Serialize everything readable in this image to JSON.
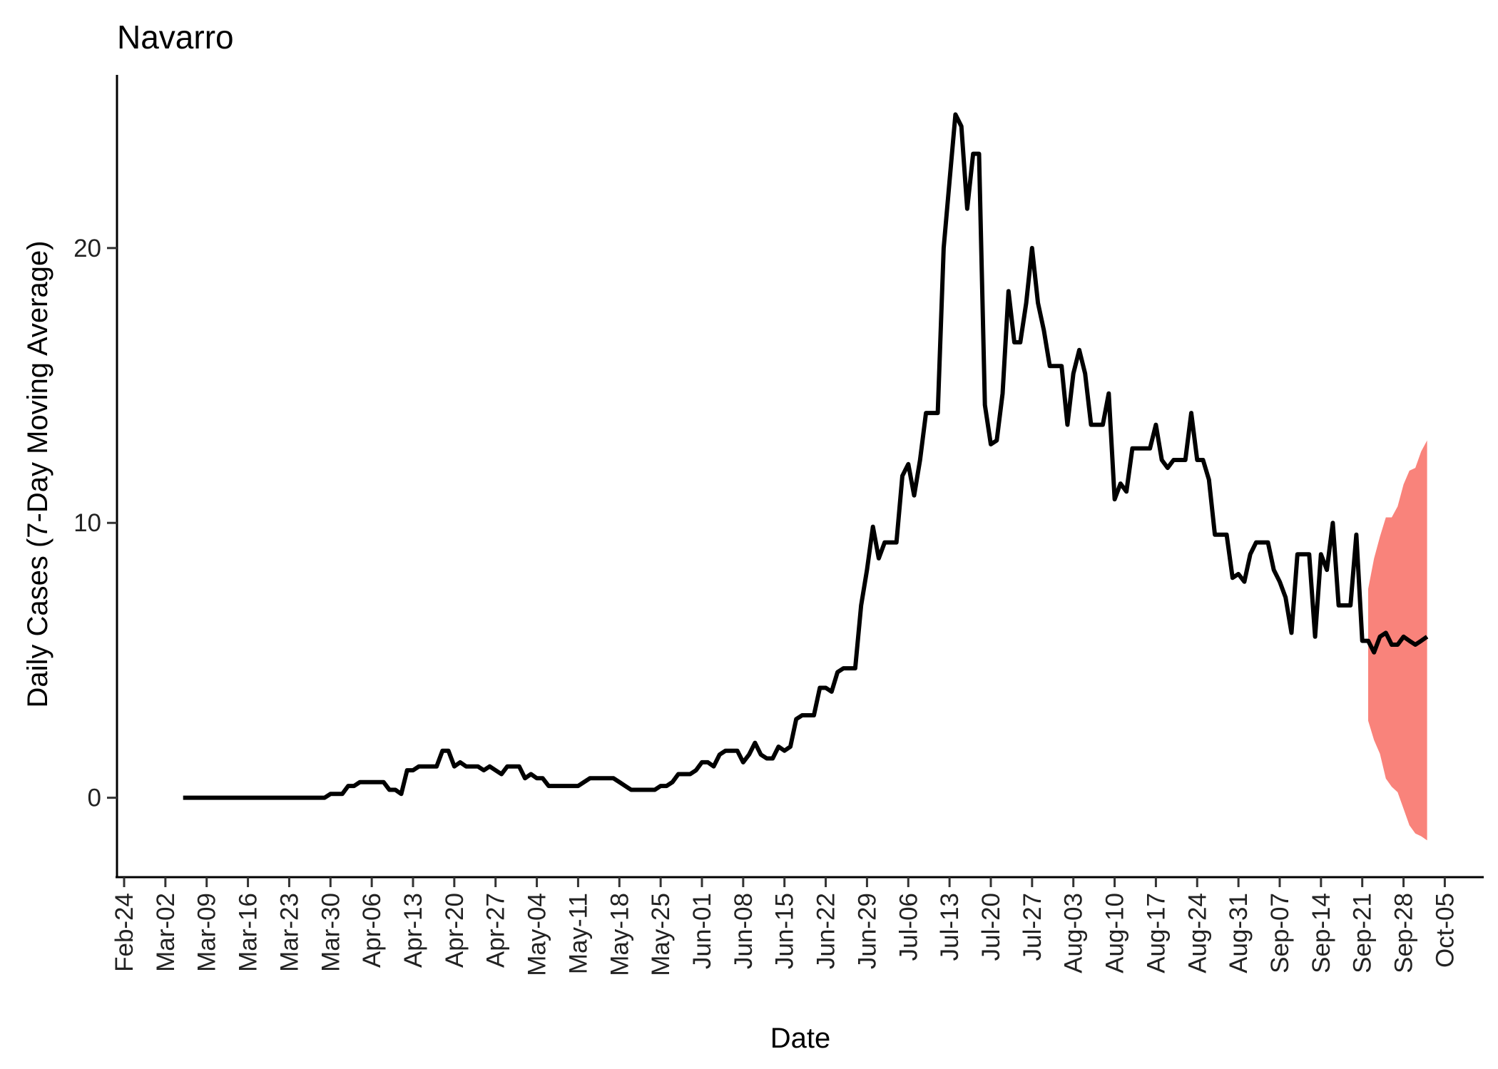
{
  "chart_data": {
    "type": "line",
    "title": "Navarro",
    "xlabel": "Date",
    "ylabel": "Daily Cases (7-Day Moving Average)",
    "x_tick_labels": [
      "Feb-24",
      "Mar-02",
      "Mar-09",
      "Mar-16",
      "Mar-23",
      "Mar-30",
      "Apr-06",
      "Apr-13",
      "Apr-20",
      "Apr-27",
      "May-04",
      "May-11",
      "May-18",
      "May-25",
      "Jun-01",
      "Jun-08",
      "Jun-15",
      "Jun-22",
      "Jun-29",
      "Jul-06",
      "Jul-13",
      "Jul-20",
      "Jul-27",
      "Aug-03",
      "Aug-10",
      "Aug-17",
      "Aug-24",
      "Aug-31",
      "Sep-07",
      "Sep-14",
      "Sep-21",
      "Sep-28",
      "Oct-05"
    ],
    "y_ticks": [
      0,
      10,
      20
    ],
    "ylim": [
      -2.5,
      26.3
    ],
    "xlim": [
      "2020-02-24",
      "2020-10-11"
    ],
    "grid": false,
    "series": [
      {
        "type": "line",
        "color": "#000000",
        "points": [
          [
            "2020-03-05",
            0
          ],
          [
            "2020-03-10",
            0
          ],
          [
            "2020-03-15",
            0
          ],
          [
            "2020-03-20",
            0
          ],
          [
            "2020-03-25",
            0
          ],
          [
            "2020-03-29",
            0
          ],
          [
            "2020-03-30",
            0.14
          ],
          [
            "2020-03-31",
            0.14
          ],
          [
            "2020-04-01",
            0.14
          ],
          [
            "2020-04-02",
            0.43
          ],
          [
            "2020-04-03",
            0.43
          ],
          [
            "2020-04-04",
            0.57
          ],
          [
            "2020-04-05",
            0.57
          ],
          [
            "2020-04-06",
            0.57
          ],
          [
            "2020-04-07",
            0.57
          ],
          [
            "2020-04-08",
            0.57
          ],
          [
            "2020-04-09",
            0.29
          ],
          [
            "2020-04-10",
            0.29
          ],
          [
            "2020-04-11",
            0.14
          ],
          [
            "2020-04-12",
            1.0
          ],
          [
            "2020-04-13",
            1.0
          ],
          [
            "2020-04-14",
            1.14
          ],
          [
            "2020-04-15",
            1.14
          ],
          [
            "2020-04-16",
            1.14
          ],
          [
            "2020-04-17",
            1.14
          ],
          [
            "2020-04-18",
            1.71
          ],
          [
            "2020-04-19",
            1.71
          ],
          [
            "2020-04-20",
            1.14
          ],
          [
            "2020-04-21",
            1.29
          ],
          [
            "2020-04-22",
            1.14
          ],
          [
            "2020-04-23",
            1.14
          ],
          [
            "2020-04-24",
            1.14
          ],
          [
            "2020-04-25",
            1.0
          ],
          [
            "2020-04-26",
            1.14
          ],
          [
            "2020-04-27",
            1.0
          ],
          [
            "2020-04-28",
            0.86
          ],
          [
            "2020-04-29",
            1.14
          ],
          [
            "2020-04-30",
            1.14
          ],
          [
            "2020-05-01",
            1.14
          ],
          [
            "2020-05-02",
            0.71
          ],
          [
            "2020-05-03",
            0.86
          ],
          [
            "2020-05-04",
            0.71
          ],
          [
            "2020-05-05",
            0.71
          ],
          [
            "2020-05-06",
            0.43
          ],
          [
            "2020-05-07",
            0.43
          ],
          [
            "2020-05-08",
            0.43
          ],
          [
            "2020-05-09",
            0.43
          ],
          [
            "2020-05-10",
            0.43
          ],
          [
            "2020-05-11",
            0.43
          ],
          [
            "2020-05-12",
            0.57
          ],
          [
            "2020-05-13",
            0.71
          ],
          [
            "2020-05-14",
            0.71
          ],
          [
            "2020-05-15",
            0.71
          ],
          [
            "2020-05-16",
            0.71
          ],
          [
            "2020-05-17",
            0.71
          ],
          [
            "2020-05-18",
            0.57
          ],
          [
            "2020-05-19",
            0.43
          ],
          [
            "2020-05-20",
            0.29
          ],
          [
            "2020-05-21",
            0.29
          ],
          [
            "2020-05-22",
            0.29
          ],
          [
            "2020-05-23",
            0.29
          ],
          [
            "2020-05-24",
            0.29
          ],
          [
            "2020-05-25",
            0.43
          ],
          [
            "2020-05-26",
            0.43
          ],
          [
            "2020-05-27",
            0.57
          ],
          [
            "2020-05-28",
            0.86
          ],
          [
            "2020-05-29",
            0.86
          ],
          [
            "2020-05-30",
            0.86
          ],
          [
            "2020-05-31",
            1.0
          ],
          [
            "2020-06-01",
            1.29
          ],
          [
            "2020-06-02",
            1.29
          ],
          [
            "2020-06-03",
            1.14
          ],
          [
            "2020-06-04",
            1.57
          ],
          [
            "2020-06-05",
            1.71
          ],
          [
            "2020-06-06",
            1.71
          ],
          [
            "2020-06-07",
            1.71
          ],
          [
            "2020-06-08",
            1.29
          ],
          [
            "2020-06-09",
            1.57
          ],
          [
            "2020-06-10",
            2.0
          ],
          [
            "2020-06-11",
            1.57
          ],
          [
            "2020-06-12",
            1.43
          ],
          [
            "2020-06-13",
            1.43
          ],
          [
            "2020-06-14",
            1.86
          ],
          [
            "2020-06-15",
            1.71
          ],
          [
            "2020-06-16",
            1.86
          ],
          [
            "2020-06-17",
            2.86
          ],
          [
            "2020-06-18",
            3.0
          ],
          [
            "2020-06-19",
            3.0
          ],
          [
            "2020-06-20",
            3.0
          ],
          [
            "2020-06-21",
            4.0
          ],
          [
            "2020-06-22",
            4.0
          ],
          [
            "2020-06-23",
            3.86
          ],
          [
            "2020-06-24",
            4.57
          ],
          [
            "2020-06-25",
            4.71
          ],
          [
            "2020-06-26",
            4.71
          ],
          [
            "2020-06-27",
            4.71
          ],
          [
            "2020-06-28",
            7.0
          ],
          [
            "2020-06-29",
            8.29
          ],
          [
            "2020-06-30",
            9.86
          ],
          [
            "2020-07-01",
            8.71
          ],
          [
            "2020-07-02",
            9.29
          ],
          [
            "2020-07-03",
            9.29
          ],
          [
            "2020-07-04",
            9.29
          ],
          [
            "2020-07-05",
            11.71
          ],
          [
            "2020-07-06",
            12.14
          ],
          [
            "2020-07-07",
            11.0
          ],
          [
            "2020-07-08",
            12.29
          ],
          [
            "2020-07-09",
            14.0
          ],
          [
            "2020-07-10",
            14.0
          ],
          [
            "2020-07-11",
            14.0
          ],
          [
            "2020-07-12",
            20.0
          ],
          [
            "2020-07-13",
            22.43
          ],
          [
            "2020-07-14",
            24.86
          ],
          [
            "2020-07-15",
            24.43
          ],
          [
            "2020-07-16",
            21.43
          ],
          [
            "2020-07-17",
            23.43
          ],
          [
            "2020-07-18",
            23.43
          ],
          [
            "2020-07-19",
            14.29
          ],
          [
            "2020-07-20",
            12.86
          ],
          [
            "2020-07-21",
            13.0
          ],
          [
            "2020-07-22",
            14.71
          ],
          [
            "2020-07-23",
            18.43
          ],
          [
            "2020-07-24",
            16.57
          ],
          [
            "2020-07-25",
            16.57
          ],
          [
            "2020-07-26",
            18.0
          ],
          [
            "2020-07-27",
            20.0
          ],
          [
            "2020-07-28",
            18.0
          ],
          [
            "2020-07-29",
            17.0
          ],
          [
            "2020-07-30",
            15.71
          ],
          [
            "2020-07-31",
            15.71
          ],
          [
            "2020-08-01",
            15.71
          ],
          [
            "2020-08-02",
            13.57
          ],
          [
            "2020-08-03",
            15.43
          ],
          [
            "2020-08-04",
            16.29
          ],
          [
            "2020-08-05",
            15.43
          ],
          [
            "2020-08-06",
            13.57
          ],
          [
            "2020-08-07",
            13.57
          ],
          [
            "2020-08-08",
            13.57
          ],
          [
            "2020-08-09",
            14.71
          ],
          [
            "2020-08-10",
            10.86
          ],
          [
            "2020-08-11",
            11.43
          ],
          [
            "2020-08-12",
            11.14
          ],
          [
            "2020-08-13",
            12.71
          ],
          [
            "2020-08-14",
            12.71
          ],
          [
            "2020-08-15",
            12.71
          ],
          [
            "2020-08-16",
            12.71
          ],
          [
            "2020-08-17",
            13.57
          ],
          [
            "2020-08-18",
            12.29
          ],
          [
            "2020-08-19",
            12.0
          ],
          [
            "2020-08-20",
            12.29
          ],
          [
            "2020-08-21",
            12.29
          ],
          [
            "2020-08-22",
            12.29
          ],
          [
            "2020-08-23",
            14.0
          ],
          [
            "2020-08-24",
            12.29
          ],
          [
            "2020-08-25",
            12.29
          ],
          [
            "2020-08-26",
            11.57
          ],
          [
            "2020-08-27",
            9.57
          ],
          [
            "2020-08-28",
            9.57
          ],
          [
            "2020-08-29",
            9.57
          ],
          [
            "2020-08-30",
            8.0
          ],
          [
            "2020-08-31",
            8.14
          ],
          [
            "2020-09-01",
            7.86
          ],
          [
            "2020-09-02",
            8.86
          ],
          [
            "2020-09-03",
            9.29
          ],
          [
            "2020-09-04",
            9.29
          ],
          [
            "2020-09-05",
            9.29
          ],
          [
            "2020-09-06",
            8.29
          ],
          [
            "2020-09-07",
            7.86
          ],
          [
            "2020-09-08",
            7.29
          ],
          [
            "2020-09-09",
            6.0
          ],
          [
            "2020-09-10",
            8.86
          ],
          [
            "2020-09-11",
            8.86
          ],
          [
            "2020-09-12",
            8.86
          ],
          [
            "2020-09-13",
            5.86
          ],
          [
            "2020-09-14",
            8.86
          ],
          [
            "2020-09-15",
            8.29
          ],
          [
            "2020-09-16",
            10.0
          ],
          [
            "2020-09-17",
            7.0
          ],
          [
            "2020-09-18",
            7.0
          ],
          [
            "2020-09-19",
            7.0
          ],
          [
            "2020-09-20",
            9.57
          ],
          [
            "2020-09-21",
            5.71
          ],
          [
            "2020-09-22",
            5.71
          ],
          [
            "2020-09-23",
            5.29
          ],
          [
            "2020-09-24",
            5.86
          ],
          [
            "2020-09-25",
            6.0
          ],
          [
            "2020-09-26",
            5.57
          ],
          [
            "2020-09-27",
            5.57
          ],
          [
            "2020-09-28",
            5.86
          ],
          [
            "2020-09-29",
            5.71
          ],
          [
            "2020-09-30",
            5.57
          ],
          [
            "2020-10-01",
            5.71
          ],
          [
            "2020-10-02",
            5.86
          ]
        ]
      }
    ],
    "ribbon": {
      "type": "area",
      "color": "#F8766D",
      "opacity": 0.9,
      "points": [
        [
          "2020-09-22",
          2.8,
          7.6
        ],
        [
          "2020-09-23",
          2.1,
          8.7
        ],
        [
          "2020-09-24",
          1.6,
          9.5
        ],
        [
          "2020-09-25",
          0.7,
          10.2
        ],
        [
          "2020-09-26",
          0.4,
          10.2
        ],
        [
          "2020-09-27",
          0.2,
          10.6
        ],
        [
          "2020-09-28",
          -0.4,
          11.4
        ],
        [
          "2020-09-29",
          -1.0,
          11.9
        ],
        [
          "2020-09-30",
          -1.3,
          12.0
        ],
        [
          "2020-10-01",
          -1.4,
          12.6
        ],
        [
          "2020-10-02",
          -1.55,
          13.0
        ]
      ]
    }
  }
}
